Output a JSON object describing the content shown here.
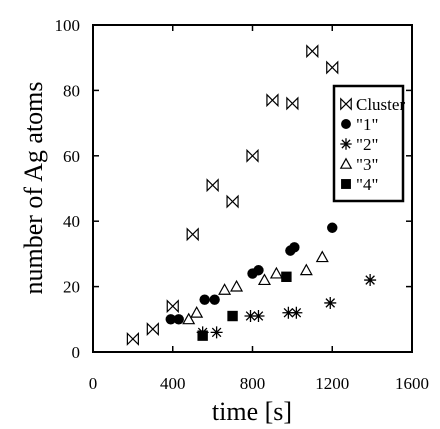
{
  "chart_data": {
    "type": "scatter",
    "xlabel": "time [s]",
    "ylabel": "number of Ag atoms",
    "xlim": [
      0,
      1600
    ],
    "ylim": [
      0,
      100
    ],
    "x_ticks": [
      0,
      400,
      800,
      1200,
      1600
    ],
    "y_ticks": [
      0,
      20,
      40,
      60,
      80,
      100
    ],
    "x_tick_labels": [
      "0",
      "400",
      "800",
      "1200",
      "1600"
    ],
    "y_tick_labels": [
      "0",
      "20",
      "40",
      "60",
      "80",
      "100"
    ],
    "grid": false,
    "legend_position": "right",
    "series": [
      {
        "name": "Cluster",
        "marker": "bowtie",
        "points": [
          [
            200,
            4
          ],
          [
            300,
            7
          ],
          [
            400,
            14
          ],
          [
            500,
            36
          ],
          [
            600,
            51
          ],
          [
            700,
            46
          ],
          [
            800,
            60
          ],
          [
            900,
            77
          ],
          [
            1000,
            76
          ],
          [
            1100,
            92
          ],
          [
            1200,
            87
          ]
        ]
      },
      {
        "name": "\"1\"",
        "marker": "filled-circle",
        "points": [
          [
            390,
            10
          ],
          [
            430,
            10
          ],
          [
            560,
            16
          ],
          [
            610,
            16
          ],
          [
            800,
            24
          ],
          [
            830,
            25
          ],
          [
            990,
            31
          ],
          [
            1010,
            32
          ],
          [
            1200,
            38
          ]
        ]
      },
      {
        "name": "\"2\"",
        "marker": "asterisk",
        "points": [
          [
            550,
            6
          ],
          [
            620,
            6
          ],
          [
            790,
            11
          ],
          [
            830,
            11
          ],
          [
            980,
            12
          ],
          [
            1020,
            12
          ],
          [
            1190,
            15
          ],
          [
            1390,
            22
          ]
        ]
      },
      {
        "name": "\"3\"",
        "marker": "open-triangle",
        "points": [
          [
            480,
            10
          ],
          [
            520,
            12
          ],
          [
            660,
            19
          ],
          [
            720,
            20
          ],
          [
            860,
            22
          ],
          [
            920,
            24
          ],
          [
            1070,
            25
          ],
          [
            1150,
            29
          ]
        ]
      },
      {
        "name": "\"4\"",
        "marker": "filled-square",
        "points": [
          [
            550,
            5
          ],
          [
            700,
            11
          ],
          [
            970,
            23
          ]
        ]
      }
    ]
  }
}
